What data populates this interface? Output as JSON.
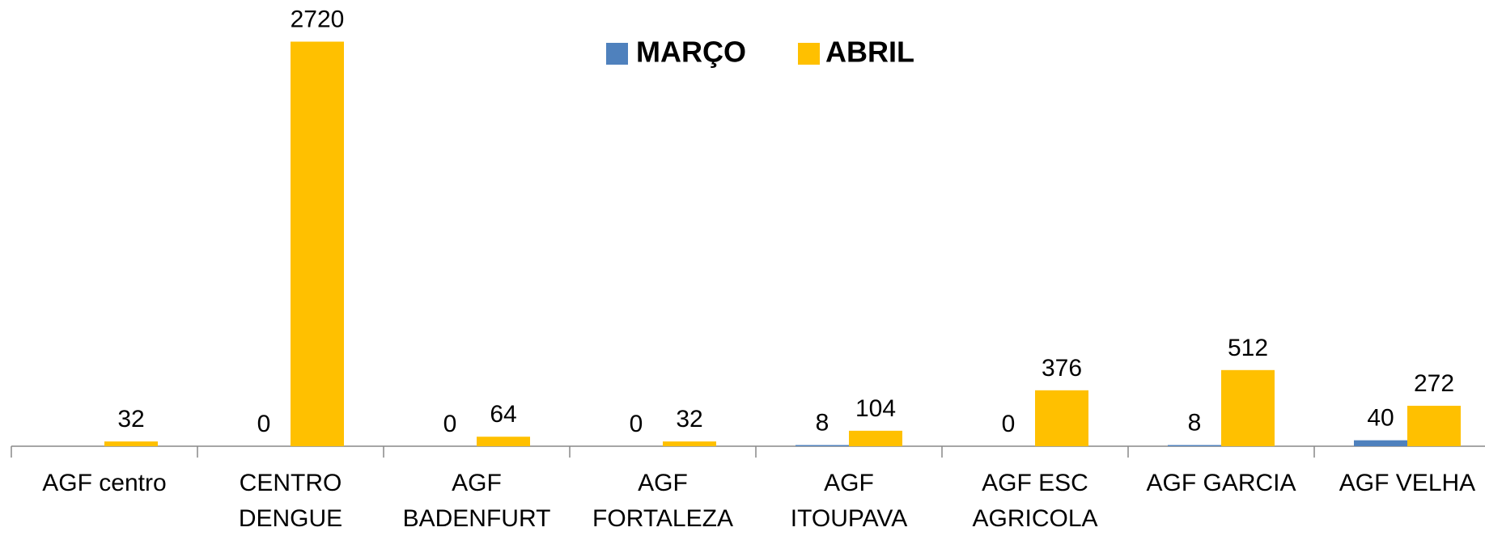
{
  "chart_data": {
    "type": "bar",
    "categories": [
      "AGF centro",
      "CENTRO\nDENGUE",
      "AGF\nBADENFURT",
      "AGF\nFORTALEZA",
      "AGF\nITOUPAVA",
      "AGF ESC\nAGRICOLA",
      "AGF GARCIA",
      "AGF VELHA"
    ],
    "series": [
      {
        "name": "MARÇO",
        "color": "#4f81bd",
        "values": [
          null,
          0,
          0,
          0,
          8,
          0,
          8,
          40
        ]
      },
      {
        "name": "ABRIL",
        "color": "#ffc000",
        "values": [
          32,
          2720,
          64,
          32,
          104,
          376,
          512,
          272
        ]
      }
    ],
    "ylim": [
      0,
      3000
    ],
    "legend": "top"
  }
}
